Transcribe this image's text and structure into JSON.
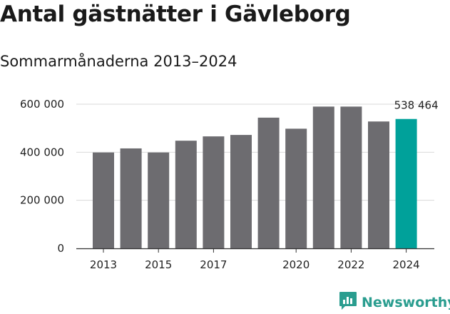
{
  "title": "Antal gästnätter i Gävleborg",
  "subtitle": "Sommarmånaderna 2013–2024",
  "brand": {
    "name": "Newsworthy",
    "icon": "chat-bubble-bar-chart-icon",
    "color": "#2a9d8f"
  },
  "colors": {
    "bar_default": "#6d6c70",
    "bar_highlight": "#00a19a",
    "grid": "#d9d9d9",
    "axis": "#333333"
  },
  "chart_data": {
    "type": "bar",
    "title": "Antal gästnätter i Gävleborg",
    "subtitle": "Sommarmånaderna 2013–2024",
    "xlabel": "",
    "ylabel": "",
    "categories": [
      "2013",
      "2014",
      "2015",
      "2016",
      "2017",
      "2018",
      "2019",
      "2020",
      "2021",
      "2022",
      "2023",
      "2024"
    ],
    "values": [
      399000,
      416000,
      399000,
      448000,
      466000,
      472000,
      544000,
      498000,
      590000,
      590000,
      528000,
      538464
    ],
    "highlight_index": 11,
    "ylim": [
      0,
      600000
    ],
    "yticks": [
      0,
      200000,
      400000,
      600000
    ],
    "ytick_labels": [
      "0",
      "200 000",
      "400 000",
      "600 000"
    ],
    "xtick_labels": [
      "2013",
      "2015",
      "2017",
      "2020",
      "2022",
      "2024"
    ],
    "annotation": {
      "category": "2024",
      "text": "538 464"
    },
    "grid": true
  }
}
